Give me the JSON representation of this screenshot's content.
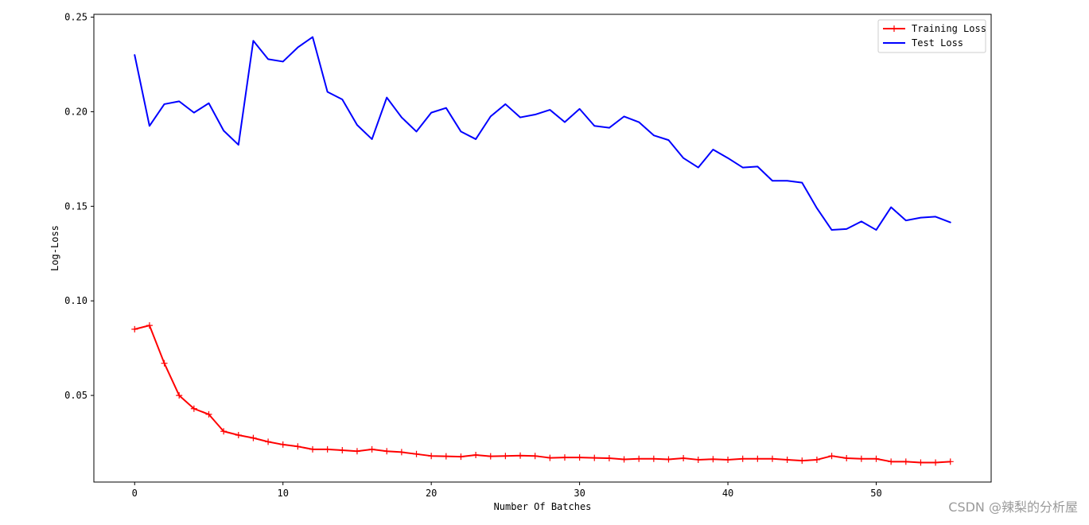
{
  "chart_data": {
    "type": "line",
    "title": "",
    "xlabel": "Number Of Batches",
    "ylabel": "Log-Loss",
    "xlim": [
      -2.75,
      57.75
    ],
    "ylim": [
      0.0042,
      0.2515
    ],
    "xticks": [
      0,
      10,
      20,
      30,
      40,
      50
    ],
    "yticks": [
      0.05,
      0.1,
      0.15,
      0.2,
      0.25
    ],
    "ytick_labels": [
      "0.05",
      "0.10",
      "0.15",
      "0.20",
      "0.25"
    ],
    "grid": false,
    "legend_position": "top-right",
    "x": [
      0,
      1,
      2,
      3,
      4,
      5,
      6,
      7,
      8,
      9,
      10,
      11,
      12,
      13,
      14,
      15,
      16,
      17,
      18,
      19,
      20,
      21,
      22,
      23,
      24,
      25,
      26,
      27,
      28,
      29,
      30,
      31,
      32,
      33,
      34,
      35,
      36,
      37,
      38,
      39,
      40,
      41,
      42,
      43,
      44,
      45,
      46,
      47,
      48,
      49,
      50,
      51,
      52,
      53,
      54,
      55
    ],
    "series": [
      {
        "name": "Training Loss",
        "color": "#ff0000",
        "marker": "+",
        "values": [
          0.085,
          0.087,
          0.067,
          0.05,
          0.043,
          0.04,
          0.031,
          0.029,
          0.0275,
          0.0255,
          0.024,
          0.023,
          0.0215,
          0.0215,
          0.021,
          0.0205,
          0.0215,
          0.0205,
          0.02,
          0.019,
          0.018,
          0.0178,
          0.0176,
          0.0185,
          0.0178,
          0.018,
          0.0182,
          0.018,
          0.017,
          0.0172,
          0.0172,
          0.017,
          0.0168,
          0.0162,
          0.0165,
          0.0165,
          0.0162,
          0.0168,
          0.016,
          0.0163,
          0.016,
          0.0165,
          0.0165,
          0.0165,
          0.016,
          0.0155,
          0.016,
          0.018,
          0.0168,
          0.0165,
          0.0165,
          0.015,
          0.015,
          0.0145,
          0.0145,
          0.015
        ]
      },
      {
        "name": "Test Loss",
        "color": "#0000ff",
        "marker": "",
        "values": [
          0.23,
          0.1925,
          0.204,
          0.2055,
          0.1995,
          0.2045,
          0.19,
          0.1825,
          0.2375,
          0.2278,
          0.2265,
          0.234,
          0.2395,
          0.2105,
          0.2065,
          0.193,
          0.1855,
          0.2075,
          0.197,
          0.1895,
          0.1995,
          0.202,
          0.1895,
          0.1855,
          0.1975,
          0.204,
          0.197,
          0.1985,
          0.201,
          0.1945,
          0.2015,
          0.1925,
          0.1915,
          0.1975,
          0.1945,
          0.1875,
          0.185,
          0.1755,
          0.1705,
          0.18,
          0.1755,
          0.1705,
          0.171,
          0.1635,
          0.1635,
          0.1625,
          0.149,
          0.1375,
          0.138,
          0.142,
          0.1375,
          0.1495,
          0.1425,
          0.144,
          0.1445,
          0.1415
        ]
      }
    ]
  },
  "watermark": "CSDN @辣梨的分析屋"
}
